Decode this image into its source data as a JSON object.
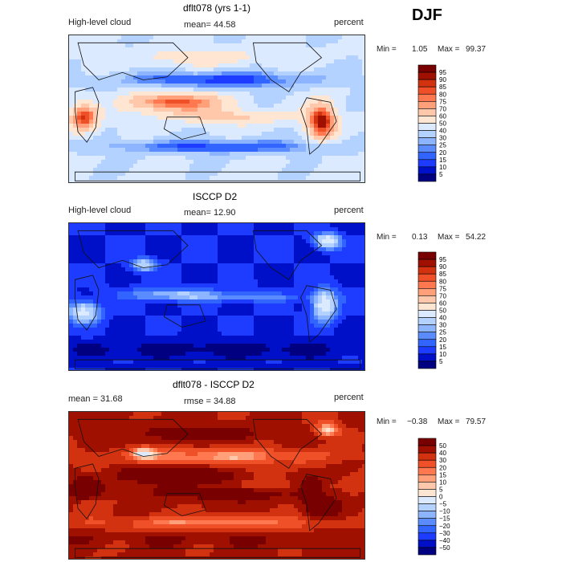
{
  "season": "DJF",
  "colors": {
    "abs_scale": [
      "#000080",
      "#0010c8",
      "#1e3cff",
      "#3264ff",
      "#5a8cff",
      "#8cb4ff",
      "#b4d2ff",
      "#dceaff",
      "#ffffff",
      "#ffe6d2",
      "#ffc8aa",
      "#ffa07a",
      "#ff7850",
      "#f05028",
      "#d23210",
      "#a01000",
      "#780000"
    ],
    "diff_scale": [
      "#000080",
      "#0010c8",
      "#1e3cff",
      "#3264ff",
      "#5a8cff",
      "#8cb4ff",
      "#b4d2ff",
      "#dceaff",
      "#ffffff",
      "#ffe6d2",
      "#ffc8aa",
      "#ffa07a",
      "#ff7850",
      "#f05028",
      "#d23210",
      "#a01000",
      "#780000"
    ]
  },
  "panels": [
    {
      "title": "dflt078 (yrs 1-1)",
      "left_label": "High-level cloud",
      "mid_label": "mean=  44.58",
      "unit": "percent",
      "min_label": "Min =",
      "min_value": "1.05",
      "max_label": "Max =",
      "max_value": "99.37",
      "colorbar_ticks": [
        "95",
        "90",
        "85",
        "80",
        "75",
        "70",
        "60",
        "50",
        "40",
        "30",
        "25",
        "20",
        "15",
        "10",
        "5"
      ]
    },
    {
      "title": "ISCCP D2",
      "left_label": "High-level cloud",
      "mid_label": "mean=  12.90",
      "unit": "percent",
      "min_label": "Min =",
      "min_value": "0.13",
      "max_label": "Max =",
      "max_value": "54.22",
      "colorbar_ticks": [
        "95",
        "90",
        "85",
        "80",
        "75",
        "70",
        "60",
        "50",
        "40",
        "30",
        "25",
        "20",
        "15",
        "10",
        "5"
      ]
    },
    {
      "title": "dflt078 - ISCCP D2",
      "left_label": "mean =  31.68",
      "mid_label": "rmse =  34.88",
      "unit": "percent",
      "min_label": "Min =",
      "min_value": "−0.38",
      "max_label": "Max =",
      "max_value": "79.57",
      "colorbar_ticks": [
        "50",
        "40",
        "30",
        "20",
        "15",
        "10",
        "5",
        "0",
        "−5",
        "−10",
        "−15",
        "−20",
        "−30",
        "−40",
        "−50"
      ]
    }
  ],
  "chart_data": [
    {
      "type": "heatmap",
      "title": "dflt078 (yrs 1-1)",
      "variable": "High-level cloud",
      "units": "percent",
      "mean": 44.58,
      "min": 1.05,
      "max": 99.37,
      "contour_levels": [
        5,
        10,
        15,
        20,
        25,
        30,
        40,
        50,
        60,
        70,
        75,
        80,
        85,
        90,
        95
      ]
    },
    {
      "type": "heatmap",
      "title": "ISCCP D2",
      "variable": "High-level cloud",
      "units": "percent",
      "mean": 12.9,
      "min": 0.13,
      "max": 54.22,
      "contour_levels": [
        5,
        10,
        15,
        20,
        25,
        30,
        40,
        50,
        60,
        70,
        75,
        80,
        85,
        90,
        95
      ]
    },
    {
      "type": "heatmap",
      "title": "dflt078 - ISCCP D2",
      "units": "percent",
      "mean": 31.68,
      "rmse": 34.88,
      "min": -0.38,
      "max": 79.57,
      "contour_levels": [
        -50,
        -40,
        -30,
        -20,
        -15,
        -10,
        -5,
        0,
        5,
        10,
        15,
        20,
        30,
        40,
        50
      ]
    }
  ]
}
